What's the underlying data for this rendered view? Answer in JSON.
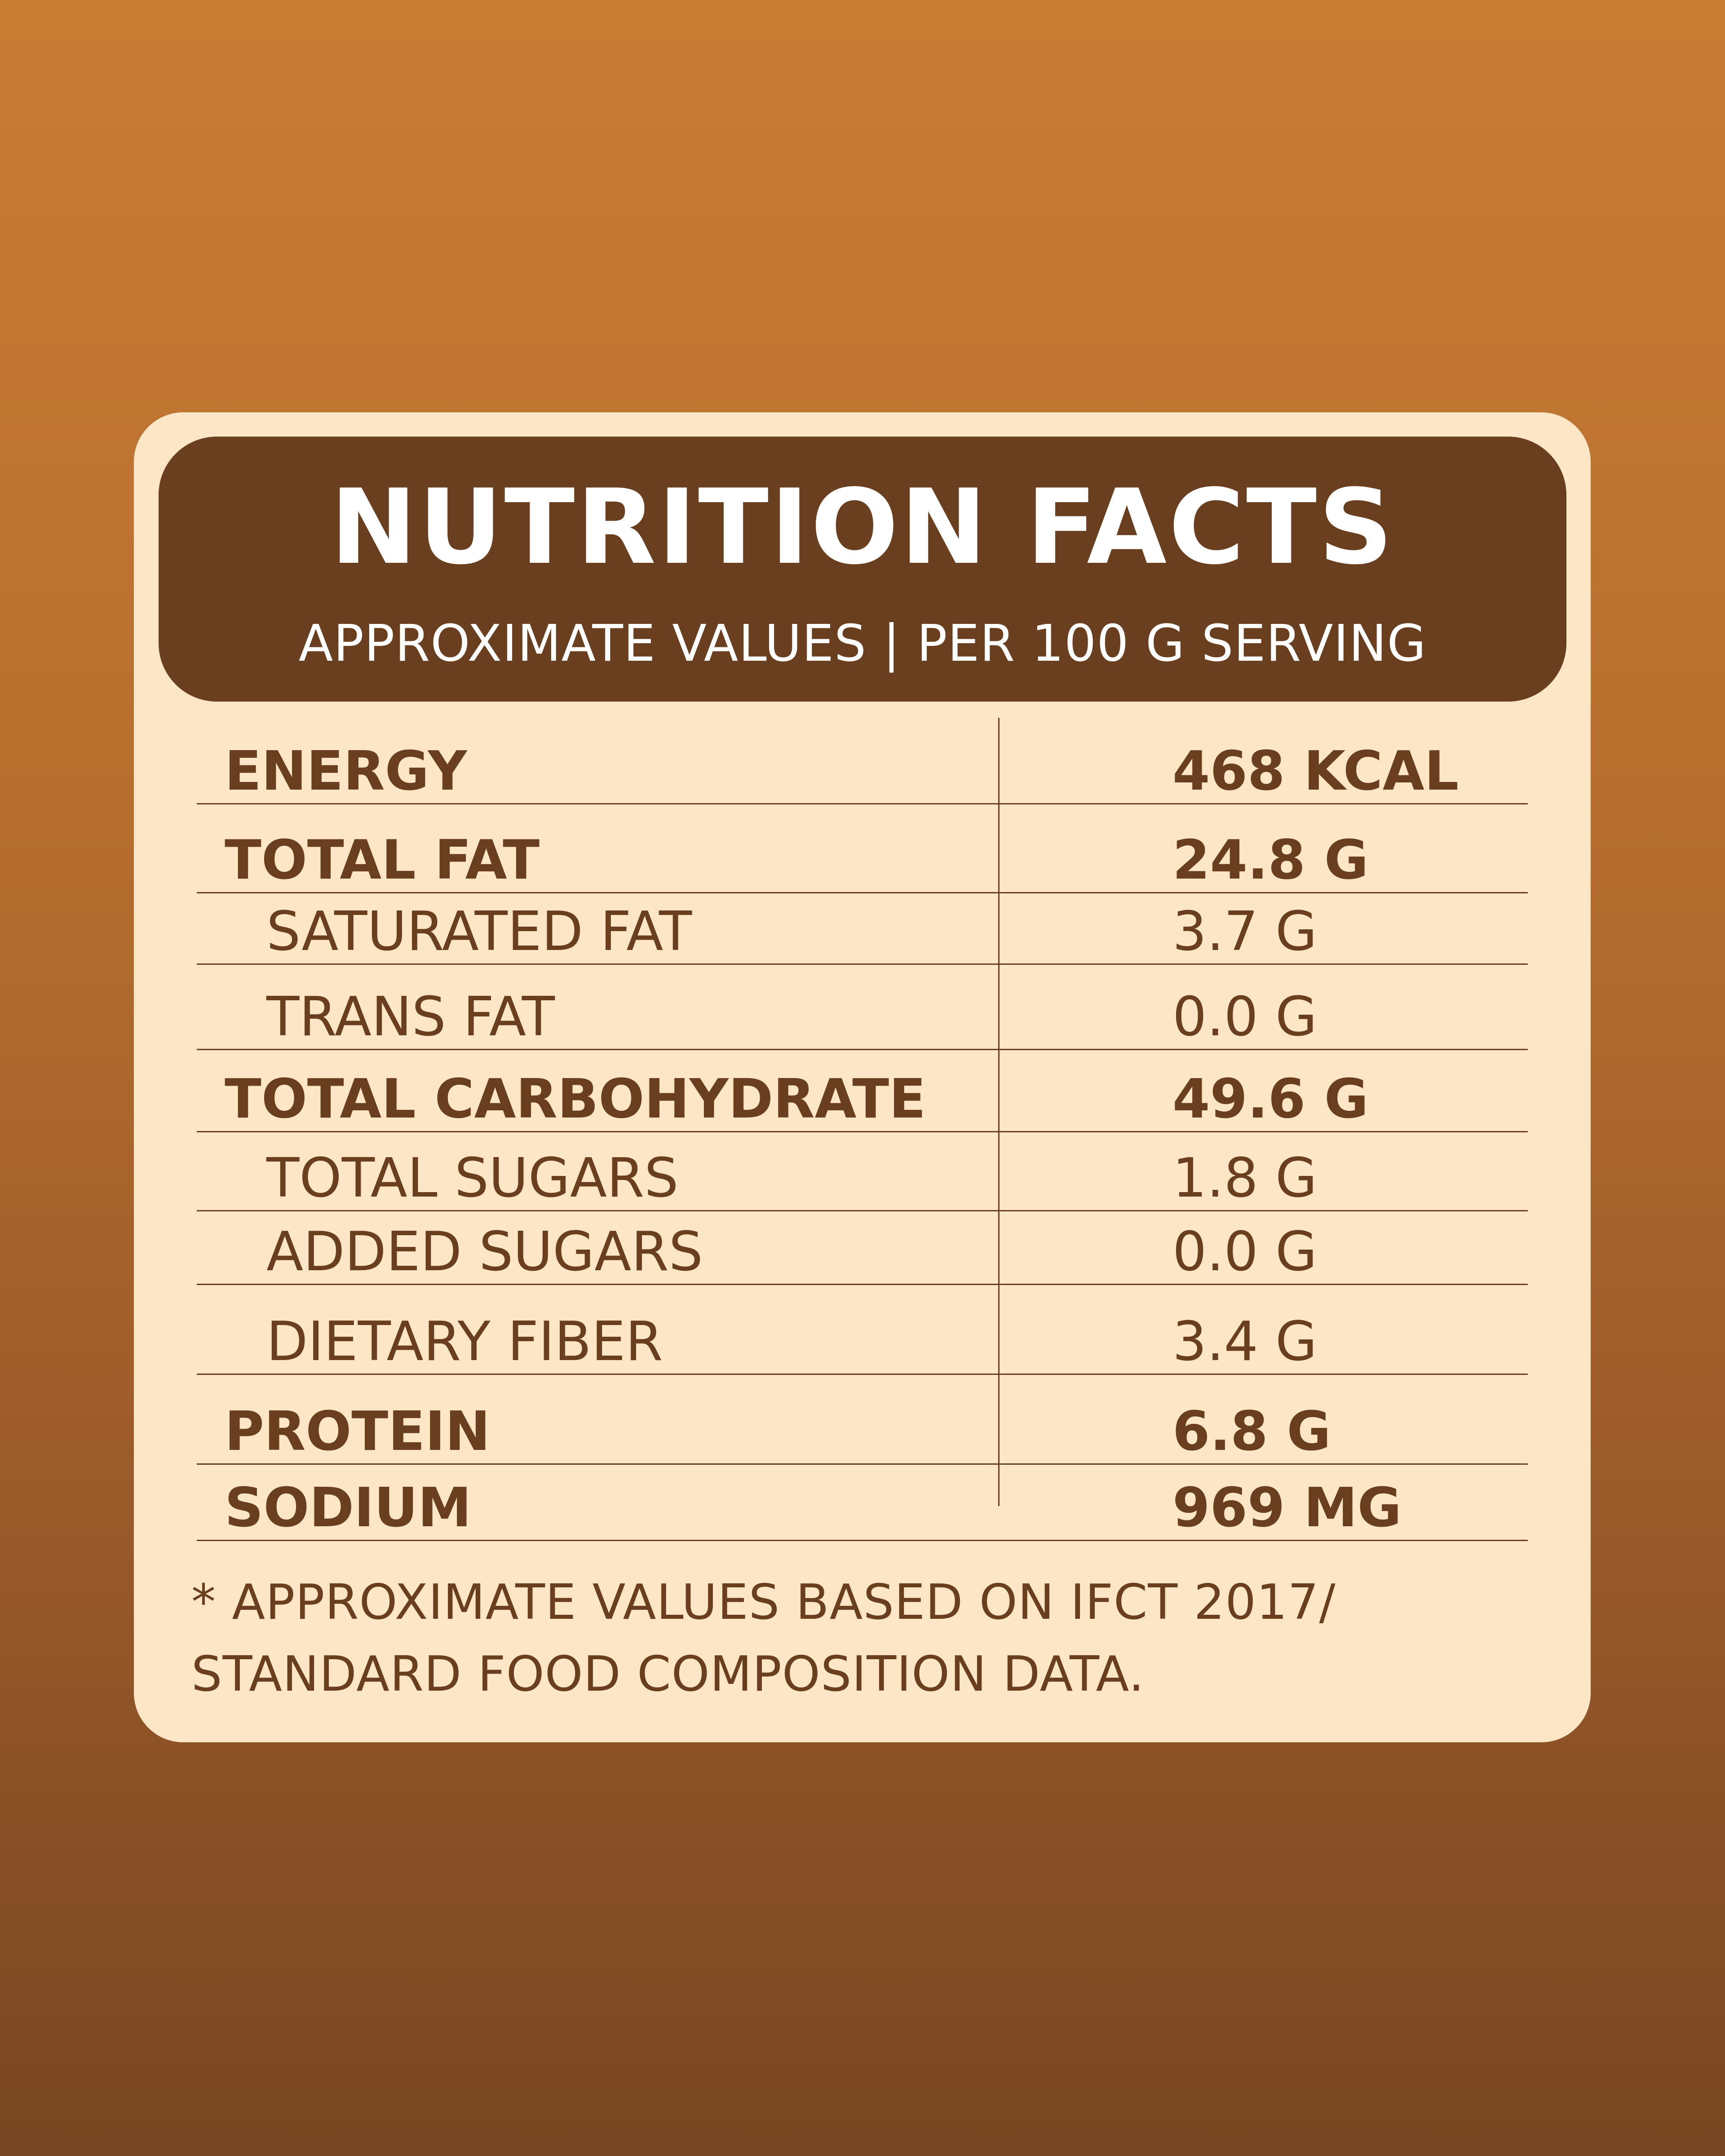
{
  "header": {
    "title": "NUTRITION FACTS",
    "subtitle": "APPROXIMATE VALUES | PER 100 G SERVING"
  },
  "rows": [
    {
      "label": "ENERGY",
      "value": "468 KCAL",
      "bold": true
    },
    {
      "label": "TOTAL FAT",
      "value": "24.8 G",
      "bold": true
    },
    {
      "label": "SATURATED FAT",
      "value": "3.7 G",
      "bold": false
    },
    {
      "label": "TRANS FAT",
      "value": "0.0 G",
      "bold": false
    },
    {
      "label": "TOTAL CARBOHYDRATE",
      "value": "49.6 G",
      "bold": true
    },
    {
      "label": "TOTAL SUGARS",
      "value": "1.8 G",
      "bold": false
    },
    {
      "label": "ADDED SUGARS",
      "value": "0.0 G",
      "bold": false
    },
    {
      "label": "DIETARY FIBER",
      "value": "3.4 G",
      "bold": false
    },
    {
      "label": "PROTEIN",
      "value": "6.8 G",
      "bold": true
    },
    {
      "label": "SODIUM",
      "value": "969 MG",
      "bold": true
    }
  ],
  "footnote": {
    "line1": "* APPROXIMATE VALUES BASED ON IFCT 2017/",
    "line2": "STANDARD FOOD COMPOSITION DATA."
  },
  "colors": {
    "background_top": "#c87c34",
    "background_bottom": "#774622",
    "card": "#fde6c6",
    "header": "#6a3f1f",
    "text": "#6a3f1f"
  }
}
